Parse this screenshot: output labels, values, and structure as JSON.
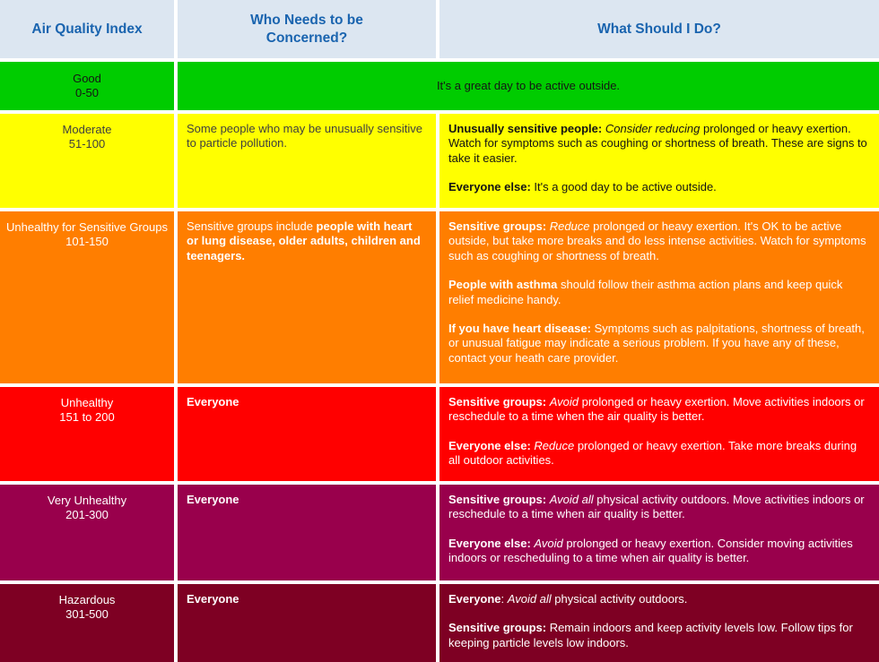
{
  "header": {
    "bg": "#dce6f1",
    "fg": "#1a64af",
    "col1": "Air Quality Index",
    "col2": "Who Needs to be\nConcerned?",
    "col3": "What Should I Do?"
  },
  "rows": [
    {
      "level": "Good",
      "range": "0-50",
      "bg": "#00cc00",
      "fg": "#151515",
      "fg_what": "#151515",
      "merged": true,
      "what": [
        [
          {
            "t": "It's a great day to be active outside."
          }
        ]
      ]
    },
    {
      "level": "Moderate",
      "range": "51-100",
      "bg": "#ffff00",
      "fg": "#3f3f3f",
      "fg_what": "#141414",
      "who": [
        [
          {
            "t": "Some people who may be unusually sensitive to particle pollution."
          }
        ]
      ],
      "what": [
        [
          {
            "t": "Unusually sensitive people:",
            "b": true
          },
          {
            "t": " "
          },
          {
            "t": "Consider reducing",
            "i": true
          },
          {
            "t": " prolonged or heavy exertion. Watch for symptoms such as coughing or shortness of breath. These are signs to take it easier."
          }
        ],
        [
          {
            "t": "Everyone else:",
            "b": true
          },
          {
            "t": " It's a good day to be active outside."
          }
        ]
      ]
    },
    {
      "level": "Unhealthy for Sensitive Groups",
      "range": "101-150",
      "bg": "#ff7e00",
      "fg": "#ffffff",
      "fg_what": "#ffffff",
      "who": [
        [
          {
            "t": "Sensitive groups include "
          },
          {
            "t": "people with heart or lung disease, older adults, children and teenagers.",
            "b": true
          }
        ]
      ],
      "what": [
        [
          {
            "t": "Sensitive groups:",
            "b": true
          },
          {
            "t": " "
          },
          {
            "t": "Reduce",
            "i": true
          },
          {
            "t": " prolonged or heavy exertion. It's OK to be active outside, but take more breaks and do less intense activities. Watch for symptoms such as coughing or shortness of breath."
          }
        ],
        [
          {
            "t": "People with asthma",
            "b": true
          },
          {
            "t": " should follow their asthma action plans and keep quick relief medicine handy."
          }
        ],
        [
          {
            "t": "If you have heart disease:",
            "b": true
          },
          {
            "t": " Symptoms such as palpitations, shortness of breath, or unusual fatigue may indicate a serious problem. If you have any of these, contact your heath care provider."
          }
        ]
      ]
    },
    {
      "level": "Unhealthy",
      "range": "151 to 200",
      "bg": "#ff0000",
      "fg": "#ffffff",
      "fg_what": "#ffffff",
      "who": [
        [
          {
            "t": "Everyone",
            "b": true
          }
        ]
      ],
      "what": [
        [
          {
            "t": "Sensitive groups:",
            "b": true
          },
          {
            "t": " "
          },
          {
            "t": "Avoid",
            "i": true
          },
          {
            "t": " prolonged or heavy exertion. Move activities indoors or reschedule to a time when the air quality is better."
          }
        ],
        [
          {
            "t": "Everyone else:",
            "b": true
          },
          {
            "t": " "
          },
          {
            "t": "Reduce",
            "i": true
          },
          {
            "t": " prolonged or heavy exertion. Take more breaks during all outdoor activities."
          }
        ]
      ]
    },
    {
      "level": "Very Unhealthy",
      "range": "201-300",
      "bg": "#99004c",
      "fg": "#ffffff",
      "fg_what": "#ffffff",
      "who": [
        [
          {
            "t": "Everyone",
            "b": true
          }
        ]
      ],
      "what": [
        [
          {
            "t": "Sensitive groups:",
            "b": true
          },
          {
            "t": " "
          },
          {
            "t": "Avoid all",
            "i": true
          },
          {
            "t": " physical activity outdoors. Move activities indoors or reschedule to a time when air quality is better."
          }
        ],
        [
          {
            "t": "Everyone else:",
            "b": true
          },
          {
            "t": " "
          },
          {
            "t": "Avoid",
            "i": true
          },
          {
            "t": " prolonged or heavy exertion. Consider moving activities indoors or rescheduling to a time when air quality is better."
          }
        ]
      ]
    },
    {
      "level": "Hazardous",
      "range": "301-500",
      "bg": "#7e0023",
      "fg": "#ffffff",
      "fg_what": "#ffffff",
      "who": [
        [
          {
            "t": "Everyone",
            "b": true
          }
        ]
      ],
      "what": [
        [
          {
            "t": "Everyone",
            "b": true
          },
          {
            "t": ": "
          },
          {
            "t": "Avoid all",
            "i": true
          },
          {
            "t": " physical activity outdoors."
          }
        ],
        [
          {
            "t": "Sensitive groups:",
            "b": true
          },
          {
            "t": " Remain indoors and keep activity levels low. Follow tips for keeping particle levels low indoors."
          }
        ]
      ]
    }
  ]
}
